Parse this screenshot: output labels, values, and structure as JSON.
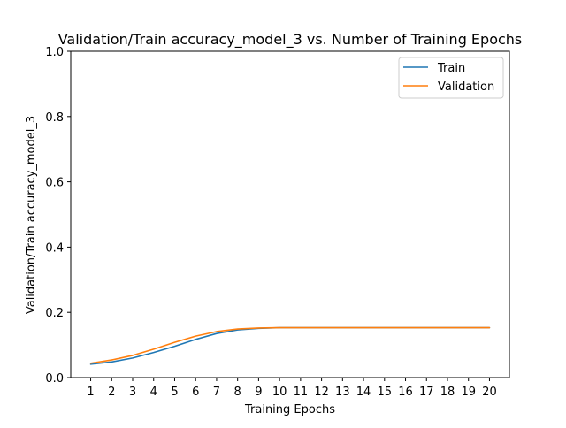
{
  "chart_data": {
    "type": "line",
    "title": "Validation/Train accuracy_model_3 vs. Number of Training Epochs",
    "xlabel": "Training Epochs",
    "ylabel": "Validation/Train accuracy_model_3",
    "x": [
      1,
      2,
      3,
      4,
      5,
      6,
      7,
      8,
      9,
      10,
      11,
      12,
      13,
      14,
      15,
      16,
      17,
      18,
      19,
      20
    ],
    "x_tick_labels": [
      "1",
      "2",
      "3",
      "4",
      "5",
      "6",
      "7",
      "8",
      "9",
      "10",
      "11",
      "12",
      "13",
      "14",
      "15",
      "16",
      "17",
      "18",
      "19",
      "20"
    ],
    "ylim": [
      0.0,
      1.0
    ],
    "y_tick_labels": [
      "0.0",
      "0.2",
      "0.4",
      "0.6",
      "0.8",
      "1.0"
    ],
    "y_ticks": [
      0.0,
      0.2,
      0.4,
      0.6,
      0.8,
      1.0
    ],
    "grid": false,
    "legend_position": "top-right",
    "series": [
      {
        "name": "Train",
        "color": "#1f77b4",
        "values": [
          0.041,
          0.048,
          0.06,
          0.077,
          0.096,
          0.117,
          0.135,
          0.146,
          0.151,
          0.153,
          0.153,
          0.153,
          0.153,
          0.153,
          0.153,
          0.153,
          0.153,
          0.153,
          0.153,
          0.153
        ]
      },
      {
        "name": "Validation",
        "color": "#ff7f0e",
        "values": [
          0.044,
          0.054,
          0.068,
          0.087,
          0.108,
          0.127,
          0.141,
          0.149,
          0.152,
          0.153,
          0.153,
          0.153,
          0.153,
          0.153,
          0.153,
          0.153,
          0.153,
          0.153,
          0.153,
          0.153
        ]
      }
    ]
  }
}
